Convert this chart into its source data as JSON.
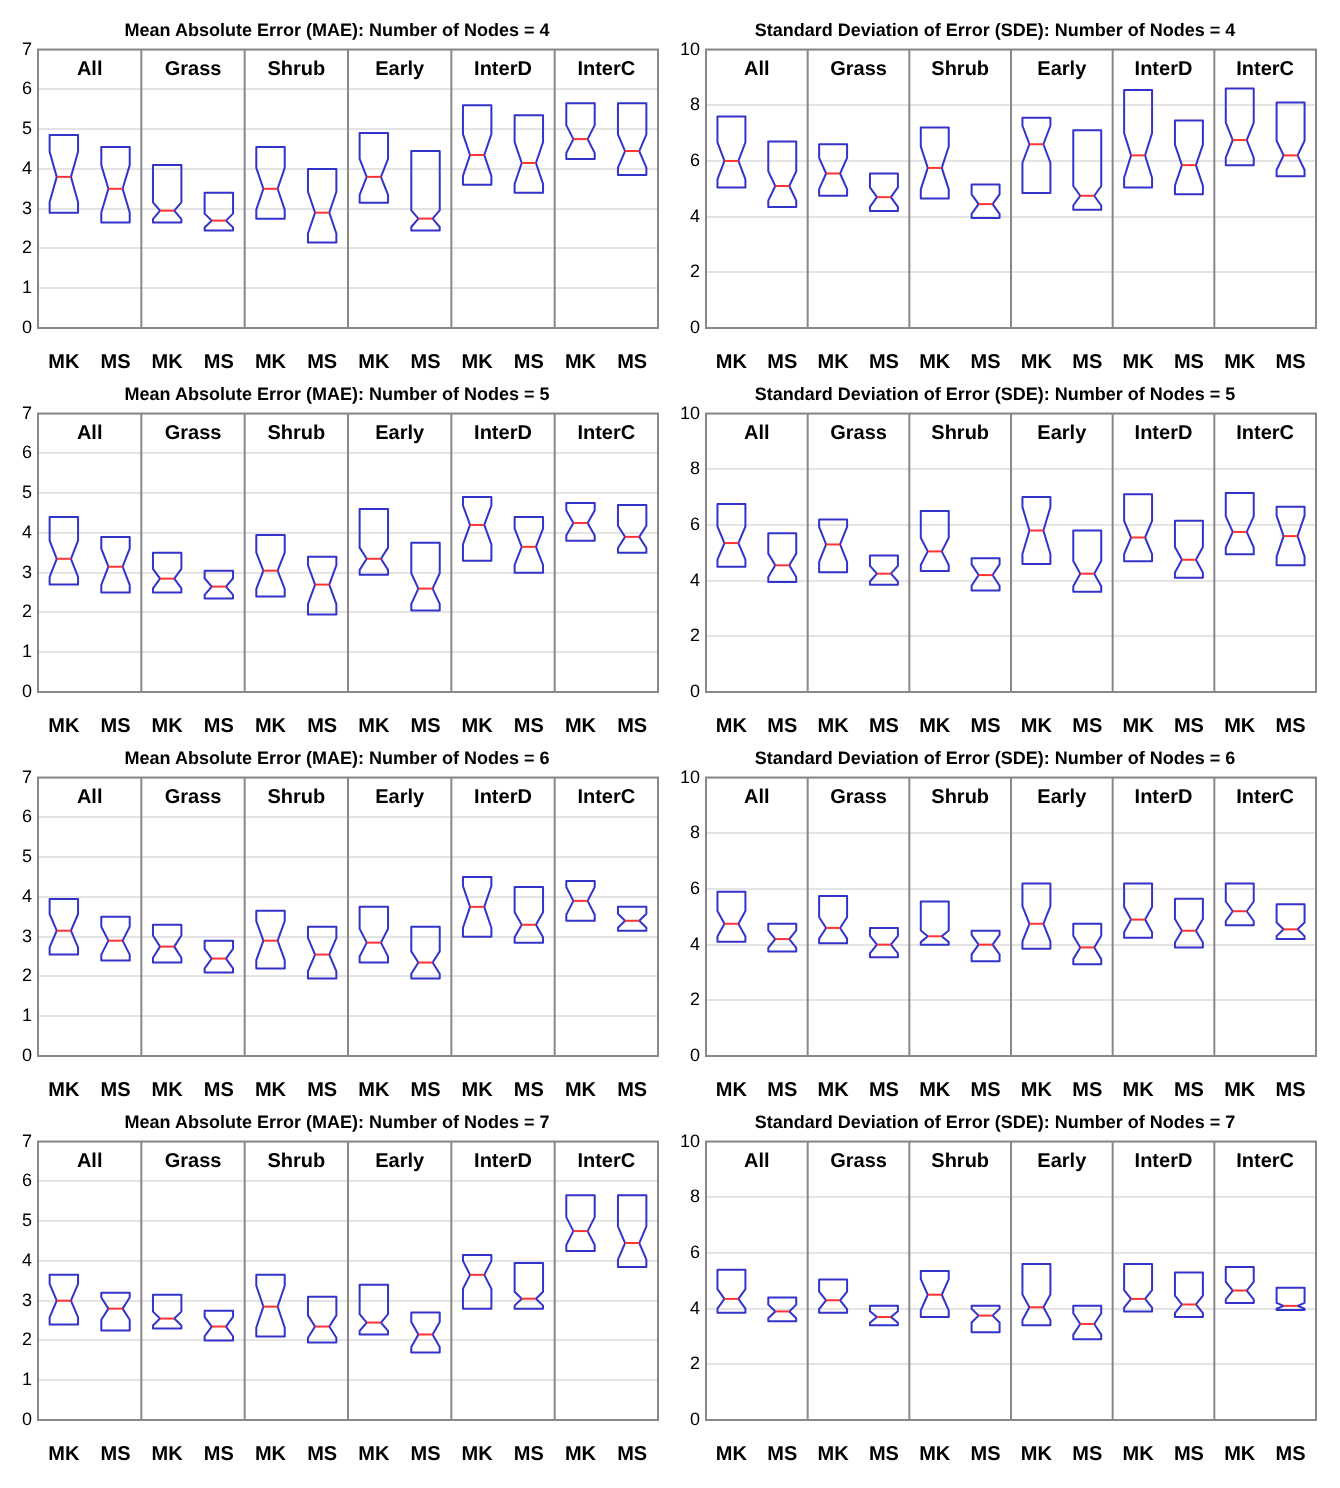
{
  "chart_data": [
    {
      "type": "box",
      "title": "Mean Absolute Error (MAE): Number of Nodes = 4",
      "categories": [
        "MK",
        "MS",
        "MK",
        "MS",
        "MK",
        "MS",
        "MK",
        "MS",
        "MK",
        "MS",
        "MK",
        "MS"
      ],
      "annotations": [
        "All",
        "Grass",
        "Shrub",
        "Early",
        "InterD",
        "InterC"
      ],
      "ylim": [
        0,
        7
      ],
      "yticks": [
        0,
        1,
        2,
        3,
        4,
        5,
        6,
        7
      ],
      "grid": "y",
      "series": [
        {
          "color": "#3333cc",
          "boxes": [
            {
              "low": 2.9,
              "q1": 2.9,
              "median": 3.8,
              "q3": 4.85,
              "high": 4.85
            },
            {
              "low": 2.65,
              "q1": 2.65,
              "median": 3.5,
              "q3": 4.55,
              "high": 4.55
            },
            {
              "low": 2.65,
              "q1": 2.65,
              "median": 2.95,
              "q3": 4.1,
              "high": 4.1
            },
            {
              "low": 2.45,
              "q1": 2.45,
              "median": 2.7,
              "q3": 3.4,
              "high": 3.4
            },
            {
              "low": 2.75,
              "q1": 2.75,
              "median": 3.5,
              "q3": 4.55,
              "high": 4.55
            },
            {
              "low": 2.15,
              "q1": 2.15,
              "median": 2.9,
              "q3": 4.0,
              "high": 4.0
            },
            {
              "low": 3.15,
              "q1": 3.15,
              "median": 3.8,
              "q3": 4.9,
              "high": 4.9
            },
            {
              "low": 2.45,
              "q1": 2.45,
              "median": 2.75,
              "q3": 4.45,
              "high": 4.45
            },
            {
              "low": 3.6,
              "q1": 3.6,
              "median": 4.35,
              "q3": 5.6,
              "high": 5.6
            },
            {
              "low": 3.4,
              "q1": 3.4,
              "median": 4.15,
              "q3": 5.35,
              "high": 5.35
            },
            {
              "low": 4.25,
              "q1": 4.25,
              "median": 4.75,
              "q3": 5.65,
              "high": 5.65
            },
            {
              "low": 3.85,
              "q1": 3.85,
              "median": 4.45,
              "q3": 5.65,
              "high": 5.65
            }
          ]
        }
      ]
    },
    {
      "type": "box",
      "title": "Standard Deviation of Error (SDE): Number of Nodes = 4",
      "categories": [
        "MK",
        "MS",
        "MK",
        "MS",
        "MK",
        "MS",
        "MK",
        "MS",
        "MK",
        "MS",
        "MK",
        "MS"
      ],
      "annotations": [
        "All",
        "Grass",
        "Shrub",
        "Early",
        "InterD",
        "InterC"
      ],
      "ylim": [
        0,
        10
      ],
      "yticks": [
        0,
        2,
        4,
        6,
        8,
        10
      ],
      "grid": "y",
      "series": [
        {
          "color": "#3333cc",
          "boxes": [
            {
              "low": 5.05,
              "q1": 5.05,
              "median": 6.0,
              "q3": 7.6,
              "high": 7.6
            },
            {
              "low": 4.35,
              "q1": 4.35,
              "median": 5.1,
              "q3": 6.7,
              "high": 6.7
            },
            {
              "low": 4.75,
              "q1": 4.75,
              "median": 5.55,
              "q3": 6.6,
              "high": 6.6
            },
            {
              "low": 4.2,
              "q1": 4.2,
              "median": 4.7,
              "q3": 5.55,
              "high": 5.55
            },
            {
              "low": 4.65,
              "q1": 4.65,
              "median": 5.75,
              "q3": 7.2,
              "high": 7.2
            },
            {
              "low": 3.95,
              "q1": 3.95,
              "median": 4.45,
              "q3": 5.15,
              "high": 5.15
            },
            {
              "low": 4.85,
              "q1": 4.85,
              "median": 6.6,
              "q3": 7.55,
              "high": 7.55
            },
            {
              "low": 4.25,
              "q1": 4.25,
              "median": 4.75,
              "q3": 7.1,
              "high": 7.1
            },
            {
              "low": 5.05,
              "q1": 5.05,
              "median": 6.2,
              "q3": 8.55,
              "high": 8.55
            },
            {
              "low": 4.8,
              "q1": 4.8,
              "median": 5.85,
              "q3": 7.45,
              "high": 7.45
            },
            {
              "low": 5.85,
              "q1": 5.85,
              "median": 6.75,
              "q3": 8.6,
              "high": 8.6
            },
            {
              "low": 5.45,
              "q1": 5.45,
              "median": 6.2,
              "q3": 8.1,
              "high": 8.1
            }
          ]
        }
      ]
    },
    {
      "type": "box",
      "title": "Mean Absolute Error (MAE): Number of Nodes = 5",
      "categories": [
        "MK",
        "MS",
        "MK",
        "MS",
        "MK",
        "MS",
        "MK",
        "MS",
        "MK",
        "MS",
        "MK",
        "MS"
      ],
      "annotations": [
        "All",
        "Grass",
        "Shrub",
        "Early",
        "InterD",
        "InterC"
      ],
      "ylim": [
        0,
        7
      ],
      "yticks": [
        0,
        1,
        2,
        3,
        4,
        5,
        6,
        7
      ],
      "grid": "y",
      "series": [
        {
          "color": "#3333cc",
          "boxes": [
            {
              "low": 2.7,
              "q1": 2.7,
              "median": 3.35,
              "q3": 4.4,
              "high": 4.4
            },
            {
              "low": 2.5,
              "q1": 2.5,
              "median": 3.15,
              "q3": 3.9,
              "high": 3.9
            },
            {
              "low": 2.5,
              "q1": 2.5,
              "median": 2.85,
              "q3": 3.5,
              "high": 3.5
            },
            {
              "low": 2.35,
              "q1": 2.35,
              "median": 2.65,
              "q3": 3.05,
              "high": 3.05
            },
            {
              "low": 2.4,
              "q1": 2.4,
              "median": 3.05,
              "q3": 3.95,
              "high": 3.95
            },
            {
              "low": 1.95,
              "q1": 1.95,
              "median": 2.7,
              "q3": 3.4,
              "high": 3.4
            },
            {
              "low": 2.95,
              "q1": 2.95,
              "median": 3.35,
              "q3": 4.6,
              "high": 4.6
            },
            {
              "low": 2.05,
              "q1": 2.05,
              "median": 2.6,
              "q3": 3.75,
              "high": 3.75
            },
            {
              "low": 3.3,
              "q1": 3.3,
              "median": 4.2,
              "q3": 4.9,
              "high": 4.9
            },
            {
              "low": 3.0,
              "q1": 3.0,
              "median": 3.65,
              "q3": 4.4,
              "high": 4.4
            },
            {
              "low": 3.8,
              "q1": 3.8,
              "median": 4.25,
              "q3": 4.75,
              "high": 4.75
            },
            {
              "low": 3.5,
              "q1": 3.5,
              "median": 3.9,
              "q3": 4.7,
              "high": 4.7
            }
          ]
        }
      ]
    },
    {
      "type": "box",
      "title": "Standard Deviation of Error (SDE): Number of Nodes = 5",
      "categories": [
        "MK",
        "MS",
        "MK",
        "MS",
        "MK",
        "MS",
        "MK",
        "MS",
        "MK",
        "MS",
        "MK",
        "MS"
      ],
      "annotations": [
        "All",
        "Grass",
        "Shrub",
        "Early",
        "InterD",
        "InterC"
      ],
      "ylim": [
        0,
        10
      ],
      "yticks": [
        0,
        2,
        4,
        6,
        8,
        10
      ],
      "grid": "y",
      "series": [
        {
          "color": "#3333cc",
          "boxes": [
            {
              "low": 4.5,
              "q1": 4.5,
              "median": 5.35,
              "q3": 6.75,
              "high": 6.75
            },
            {
              "low": 3.95,
              "q1": 3.95,
              "median": 4.55,
              "q3": 5.7,
              "high": 5.7
            },
            {
              "low": 4.3,
              "q1": 4.3,
              "median": 5.3,
              "q3": 6.2,
              "high": 6.2
            },
            {
              "low": 3.85,
              "q1": 3.85,
              "median": 4.25,
              "q3": 4.9,
              "high": 4.9
            },
            {
              "low": 4.35,
              "q1": 4.35,
              "median": 5.05,
              "q3": 6.5,
              "high": 6.5
            },
            {
              "low": 3.65,
              "q1": 3.65,
              "median": 4.2,
              "q3": 4.8,
              "high": 4.8
            },
            {
              "low": 4.6,
              "q1": 4.6,
              "median": 5.8,
              "q3": 7.0,
              "high": 7.0
            },
            {
              "low": 3.6,
              "q1": 3.6,
              "median": 4.25,
              "q3": 5.8,
              "high": 5.8
            },
            {
              "low": 4.7,
              "q1": 4.7,
              "median": 5.55,
              "q3": 7.1,
              "high": 7.1
            },
            {
              "low": 4.1,
              "q1": 4.1,
              "median": 4.75,
              "q3": 6.15,
              "high": 6.15
            },
            {
              "low": 4.95,
              "q1": 4.95,
              "median": 5.75,
              "q3": 7.15,
              "high": 7.15
            },
            {
              "low": 4.55,
              "q1": 4.55,
              "median": 5.6,
              "q3": 6.65,
              "high": 6.65
            }
          ]
        }
      ]
    },
    {
      "type": "box",
      "title": "Mean Absolute Error (MAE): Number of Nodes = 6",
      "categories": [
        "MK",
        "MS",
        "MK",
        "MS",
        "MK",
        "MS",
        "MK",
        "MS",
        "MK",
        "MS",
        "MK",
        "MS"
      ],
      "annotations": [
        "All",
        "Grass",
        "Shrub",
        "Early",
        "InterD",
        "InterC"
      ],
      "ylim": [
        0,
        7
      ],
      "yticks": [
        0,
        1,
        2,
        3,
        4,
        5,
        6,
        7
      ],
      "grid": "y",
      "series": [
        {
          "color": "#3333cc",
          "boxes": [
            {
              "low": 2.55,
              "q1": 2.55,
              "median": 3.15,
              "q3": 3.95,
              "high": 3.95
            },
            {
              "low": 2.4,
              "q1": 2.4,
              "median": 2.9,
              "q3": 3.5,
              "high": 3.5
            },
            {
              "low": 2.35,
              "q1": 2.35,
              "median": 2.75,
              "q3": 3.3,
              "high": 3.3
            },
            {
              "low": 2.1,
              "q1": 2.1,
              "median": 2.45,
              "q3": 2.9,
              "high": 2.9
            },
            {
              "low": 2.2,
              "q1": 2.2,
              "median": 2.9,
              "q3": 3.65,
              "high": 3.65
            },
            {
              "low": 1.95,
              "q1": 1.95,
              "median": 2.55,
              "q3": 3.25,
              "high": 3.25
            },
            {
              "low": 2.35,
              "q1": 2.35,
              "median": 2.85,
              "q3": 3.75,
              "high": 3.75
            },
            {
              "low": 1.95,
              "q1": 1.95,
              "median": 2.35,
              "q3": 3.25,
              "high": 3.25
            },
            {
              "low": 3.0,
              "q1": 3.0,
              "median": 3.75,
              "q3": 4.5,
              "high": 4.5
            },
            {
              "low": 2.85,
              "q1": 2.85,
              "median": 3.3,
              "q3": 4.25,
              "high": 4.25
            },
            {
              "low": 3.4,
              "q1": 3.4,
              "median": 3.9,
              "q3": 4.4,
              "high": 4.4
            },
            {
              "low": 3.15,
              "q1": 3.15,
              "median": 3.4,
              "q3": 3.75,
              "high": 3.75
            }
          ]
        }
      ]
    },
    {
      "type": "box",
      "title": "Standard Deviation of Error (SDE): Number of Nodes = 6",
      "categories": [
        "MK",
        "MS",
        "MK",
        "MS",
        "MK",
        "MS",
        "MK",
        "MS",
        "MK",
        "MS",
        "MK",
        "MS"
      ],
      "annotations": [
        "All",
        "Grass",
        "Shrub",
        "Early",
        "InterD",
        "InterC"
      ],
      "ylim": [
        0,
        10
      ],
      "yticks": [
        0,
        2,
        4,
        6,
        8,
        10
      ],
      "grid": "y",
      "series": [
        {
          "color": "#3333cc",
          "boxes": [
            {
              "low": 4.1,
              "q1": 4.1,
              "median": 4.75,
              "q3": 5.9,
              "high": 5.9
            },
            {
              "low": 3.75,
              "q1": 3.75,
              "median": 4.2,
              "q3": 4.75,
              "high": 4.75
            },
            {
              "low": 4.05,
              "q1": 4.05,
              "median": 4.6,
              "q3": 5.75,
              "high": 5.75
            },
            {
              "low": 3.55,
              "q1": 3.55,
              "median": 4.0,
              "q3": 4.6,
              "high": 4.6
            },
            {
              "low": 4.0,
              "q1": 4.0,
              "median": 4.3,
              "q3": 5.55,
              "high": 5.55
            },
            {
              "low": 3.4,
              "q1": 3.4,
              "median": 4.0,
              "q3": 4.5,
              "high": 4.5
            },
            {
              "low": 3.85,
              "q1": 3.85,
              "median": 4.75,
              "q3": 6.2,
              "high": 6.2
            },
            {
              "low": 3.3,
              "q1": 3.3,
              "median": 3.9,
              "q3": 4.75,
              "high": 4.75
            },
            {
              "low": 4.25,
              "q1": 4.25,
              "median": 4.9,
              "q3": 6.2,
              "high": 6.2
            },
            {
              "low": 3.9,
              "q1": 3.9,
              "median": 4.5,
              "q3": 5.65,
              "high": 5.65
            },
            {
              "low": 4.7,
              "q1": 4.7,
              "median": 5.2,
              "q3": 6.2,
              "high": 6.2
            },
            {
              "low": 4.2,
              "q1": 4.2,
              "median": 4.55,
              "q3": 5.45,
              "high": 5.45
            }
          ]
        }
      ]
    },
    {
      "type": "box",
      "title": "Mean Absolute Error (MAE): Number of Nodes = 7",
      "categories": [
        "MK",
        "MS",
        "MK",
        "MS",
        "MK",
        "MS",
        "MK",
        "MS",
        "MK",
        "MS",
        "MK",
        "MS"
      ],
      "annotations": [
        "All",
        "Grass",
        "Shrub",
        "Early",
        "InterD",
        "InterC"
      ],
      "ylim": [
        0,
        7
      ],
      "yticks": [
        0,
        1,
        2,
        3,
        4,
        5,
        6,
        7
      ],
      "grid": "y",
      "series": [
        {
          "color": "#3333cc",
          "boxes": [
            {
              "low": 2.4,
              "q1": 2.4,
              "median": 3.0,
              "q3": 3.65,
              "high": 3.65
            },
            {
              "low": 2.25,
              "q1": 2.25,
              "median": 2.8,
              "q3": 3.2,
              "high": 3.2
            },
            {
              "low": 2.3,
              "q1": 2.3,
              "median": 2.55,
              "q3": 3.15,
              "high": 3.15
            },
            {
              "low": 2.0,
              "q1": 2.0,
              "median": 2.35,
              "q3": 2.75,
              "high": 2.75
            },
            {
              "low": 2.1,
              "q1": 2.1,
              "median": 2.85,
              "q3": 3.65,
              "high": 3.65
            },
            {
              "low": 1.95,
              "q1": 1.95,
              "median": 2.35,
              "q3": 3.1,
              "high": 3.1
            },
            {
              "low": 2.15,
              "q1": 2.15,
              "median": 2.45,
              "q3": 3.4,
              "high": 3.4
            },
            {
              "low": 1.7,
              "q1": 1.7,
              "median": 2.15,
              "q3": 2.7,
              "high": 2.7
            },
            {
              "low": 2.8,
              "q1": 2.8,
              "median": 3.65,
              "q3": 4.15,
              "high": 4.15
            },
            {
              "low": 2.8,
              "q1": 2.8,
              "median": 3.05,
              "q3": 3.95,
              "high": 3.95
            },
            {
              "low": 4.25,
              "q1": 4.25,
              "median": 4.75,
              "q3": 5.65,
              "high": 5.65
            },
            {
              "low": 3.85,
              "q1": 3.85,
              "median": 4.45,
              "q3": 5.65,
              "high": 5.65
            }
          ]
        }
      ]
    },
    {
      "type": "box",
      "title": "Standard Deviation of Error (SDE): Number of Nodes = 7",
      "categories": [
        "MK",
        "MS",
        "MK",
        "MS",
        "MK",
        "MS",
        "MK",
        "MS",
        "MK",
        "MS",
        "MK",
        "MS"
      ],
      "annotations": [
        "All",
        "Grass",
        "Shrub",
        "Early",
        "InterD",
        "InterC"
      ],
      "ylim": [
        0,
        10
      ],
      "yticks": [
        0,
        2,
        4,
        6,
        8,
        10
      ],
      "grid": "y",
      "series": [
        {
          "color": "#3333cc",
          "boxes": [
            {
              "low": 3.85,
              "q1": 3.85,
              "median": 4.35,
              "q3": 5.4,
              "high": 5.4
            },
            {
              "low": 3.55,
              "q1": 3.55,
              "median": 3.9,
              "q3": 4.4,
              "high": 4.4
            },
            {
              "low": 3.85,
              "q1": 3.85,
              "median": 4.3,
              "q3": 5.05,
              "high": 5.05
            },
            {
              "low": 3.4,
              "q1": 3.4,
              "median": 3.7,
              "q3": 4.1,
              "high": 4.1
            },
            {
              "low": 3.7,
              "q1": 3.7,
              "median": 4.5,
              "q3": 5.35,
              "high": 5.35
            },
            {
              "low": 3.15,
              "q1": 3.15,
              "median": 3.75,
              "q3": 4.1,
              "high": 4.1
            },
            {
              "low": 3.4,
              "q1": 3.4,
              "median": 4.05,
              "q3": 5.6,
              "high": 5.6
            },
            {
              "low": 2.9,
              "q1": 2.9,
              "median": 3.45,
              "q3": 4.1,
              "high": 4.1
            },
            {
              "low": 3.9,
              "q1": 3.9,
              "median": 4.35,
              "q3": 5.6,
              "high": 5.6
            },
            {
              "low": 3.7,
              "q1": 3.7,
              "median": 4.15,
              "q3": 5.3,
              "high": 5.3
            },
            {
              "low": 4.2,
              "q1": 4.2,
              "median": 4.65,
              "q3": 5.5,
              "high": 5.5
            },
            {
              "low": 3.95,
              "q1": 3.95,
              "median": 4.1,
              "q3": 4.75,
              "high": 4.75
            }
          ]
        }
      ]
    }
  ]
}
